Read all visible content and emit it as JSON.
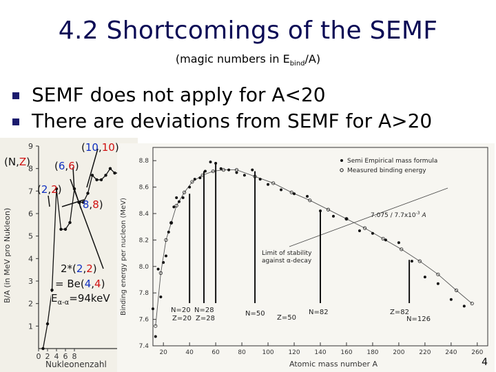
{
  "slide": {
    "title": "4.2 Shortcomings of the SEMF",
    "subtitle_pre": "(magic numbers in E",
    "subtitle_sub": "bind",
    "subtitle_post": "/A)",
    "bullets": [
      "SEMF does not apply for A<20",
      "There are deviations from SEMF for A>20"
    ],
    "page_number": "4"
  },
  "annotations": {
    "nz": "(N,Z)",
    "nz_n": "N",
    "nz_z": "Z",
    "p1010_a": "10",
    "p1010_b": "10",
    "p66_a": "6",
    "p66_b": "6",
    "p22_a": "2",
    "p22_b": "2",
    "p88_a": "8",
    "p88_b": "8",
    "two_times": "2*(",
    "be_pre": "= Be(",
    "be_a": "4",
    "be_b": "4",
    "e_label": "E",
    "e_sub": "α-α",
    "e_val": "=94keV"
  },
  "colors": {
    "title": "#0a0a55",
    "bullet": "#1b1b6e",
    "red": "#d01010",
    "blue": "#1030c0"
  },
  "chart_data": [
    {
      "type": "line",
      "title": "",
      "xlabel": "Nukleonenzahl",
      "ylabel": "B/A (in MeV pro Nukleon)",
      "x_ticks": [
        "0",
        "2",
        "4",
        "6",
        "8"
      ],
      "y_ticks": [
        "1",
        "2",
        "3",
        "4",
        "5",
        "6",
        "7",
        "8",
        "9"
      ],
      "ylim": [
        0,
        9
      ],
      "series": [
        {
          "x": [
            1,
            2,
            3,
            4,
            5,
            6,
            7,
            8,
            9,
            10,
            11,
            12,
            13,
            14,
            15,
            16,
            17,
            18,
            19,
            20
          ],
          "values": [
            0,
            1.1,
            2.6,
            7.1,
            5.3,
            5.3,
            5.6,
            7.1,
            6.5,
            6.5,
            6.9,
            7.7,
            7.5,
            7.5,
            7.7,
            8.0,
            7.8,
            7.8,
            7.9,
            8.0
          ]
        }
      ]
    },
    {
      "type": "scatter",
      "title": "",
      "xlabel": "Atomic mass number A",
      "ylabel": "Binding energy per nucleon (MeV)",
      "x_ticks": [
        "20",
        "40",
        "60",
        "80",
        "100",
        "120",
        "140",
        "160",
        "180",
        "200",
        "220",
        "240",
        "260"
      ],
      "y_ticks": [
        "7.4",
        "7.6",
        "7.8",
        "8.0",
        "8.2",
        "8.4",
        "8.6",
        "8.8"
      ],
      "xlim": [
        12,
        268
      ],
      "ylim": [
        7.4,
        8.9
      ],
      "legend": [
        "Semi Empirical mass formula",
        "Measured binding energy"
      ],
      "legend_position": "top-right",
      "annotations": [
        "7.075 / 7.7x10",
        "-3",
        "A",
        "Limit of stability",
        "against α-decay",
        "N=20",
        "Z=20",
        "N=28",
        "Z=28",
        "N=50",
        "Z=50",
        "N=82",
        "Z=82",
        "N=126"
      ],
      "series": [
        {
          "name": "Measured binding energy",
          "x": [
            12,
            14,
            16,
            18,
            20,
            22,
            24,
            26,
            28,
            30,
            32,
            35,
            40,
            44,
            48,
            52,
            56,
            60,
            64,
            70,
            76,
            82,
            88,
            94,
            100,
            110,
            120,
            130,
            140,
            150,
            160,
            170,
            180,
            190,
            200,
            210,
            220,
            230,
            240,
            250
          ],
          "values": [
            7.68,
            7.47,
            7.98,
            7.77,
            8.03,
            8.08,
            8.26,
            8.33,
            8.45,
            8.52,
            8.49,
            8.52,
            8.6,
            8.66,
            8.67,
            8.72,
            8.79,
            8.78,
            8.74,
            8.73,
            8.71,
            8.69,
            8.73,
            8.66,
            8.62,
            8.58,
            8.55,
            8.53,
            8.42,
            8.38,
            8.36,
            8.27,
            8.25,
            8.2,
            8.18,
            8.04,
            7.92,
            7.87,
            7.75,
            7.7
          ]
        },
        {
          "name": "Semi Empirical mass formula",
          "x": [
            14,
            18,
            22,
            26,
            30,
            36,
            42,
            50,
            58,
            66,
            76,
            90,
            104,
            118,
            132,
            146,
            160,
            174,
            188,
            202,
            216,
            230,
            244,
            256
          ],
          "values": [
            7.55,
            7.95,
            8.2,
            8.33,
            8.46,
            8.56,
            8.64,
            8.69,
            8.72,
            8.73,
            8.73,
            8.68,
            8.63,
            8.56,
            8.5,
            8.43,
            8.36,
            8.29,
            8.21,
            8.13,
            8.04,
            7.94,
            7.82,
            7.72
          ]
        }
      ]
    }
  ]
}
